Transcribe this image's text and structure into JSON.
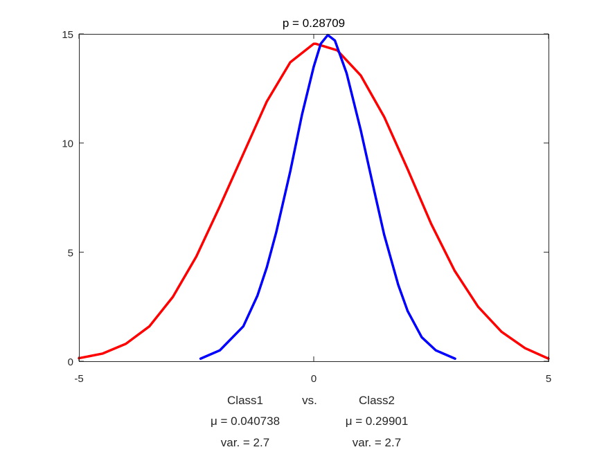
{
  "chart_data": {
    "type": "line",
    "title": "p = 0.28709",
    "xlim": [
      -5,
      5
    ],
    "ylim": [
      0,
      15
    ],
    "x_ticks": [
      "-5",
      "0",
      "5"
    ],
    "y_ticks": [
      "0",
      "5",
      "10",
      "15"
    ],
    "grid": false,
    "xlabel_lines": [
      [
        "Class1",
        "vs.",
        "Class2"
      ],
      [
        "μ = 0.040738",
        "",
        "μ = 0.29901"
      ],
      [
        "var. = 2.7",
        "",
        "var. = 2.7"
      ]
    ],
    "series": [
      {
        "color": "#ff0000",
        "x": [
          -5,
          -4.5,
          -4,
          -3.5,
          -3,
          -2.5,
          -2,
          -1.5,
          -1,
          -0.5,
          0,
          0.04,
          0.5,
          1,
          1.5,
          2,
          2.5,
          3,
          3.5,
          4,
          4.5,
          5
        ],
        "y": [
          0.14,
          0.35,
          0.8,
          1.6,
          2.95,
          4.8,
          7.1,
          9.5,
          11.9,
          13.7,
          14.55,
          14.55,
          14.25,
          13.1,
          11.2,
          8.8,
          6.3,
          4.15,
          2.5,
          1.35,
          0.6,
          0.12
        ]
      },
      {
        "color": "#0000ff",
        "x": [
          -2.41,
          -2,
          -1.5,
          -1.2,
          -1,
          -0.8,
          -0.5,
          -0.25,
          0,
          0.15,
          0.3,
          0.45,
          0.7,
          1,
          1.3,
          1.5,
          1.8,
          2,
          2.3,
          2.6,
          3.01
        ],
        "y": [
          0.12,
          0.5,
          1.6,
          3.0,
          4.3,
          5.9,
          8.7,
          11.3,
          13.5,
          14.55,
          14.95,
          14.7,
          13.2,
          10.6,
          7.7,
          5.8,
          3.5,
          2.3,
          1.1,
          0.5,
          0.12
        ]
      }
    ]
  }
}
